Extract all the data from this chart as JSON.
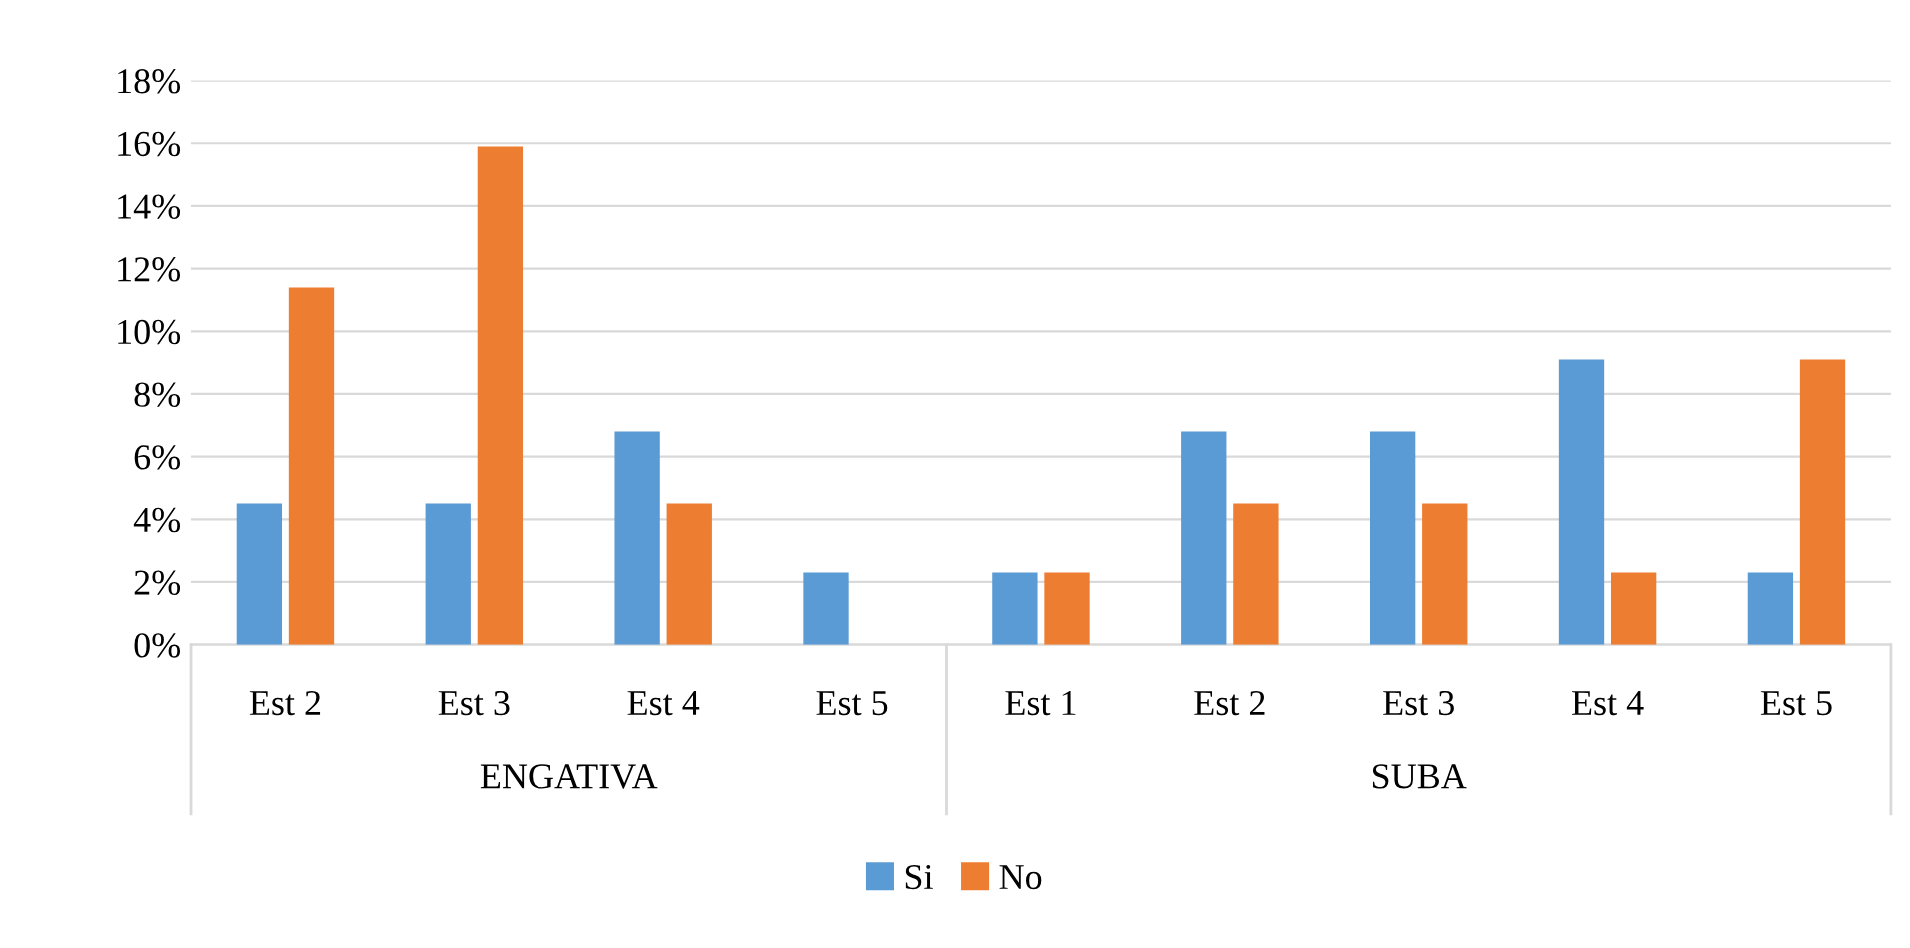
{
  "chart_data": {
    "type": "bar",
    "categories": [
      "Est 2",
      "Est 3",
      "Est 4",
      "Est 5",
      "Est 1",
      "Est 2",
      "Est 3",
      "Est 4",
      "Est 5"
    ],
    "series": [
      {
        "name": "Si",
        "color": "#5b9bd5",
        "values": [
          4.5,
          4.5,
          6.8,
          2.3,
          2.3,
          6.8,
          6.8,
          9.1,
          2.3
        ]
      },
      {
        "name": "No",
        "color": "#ed7d31",
        "values": [
          11.4,
          15.9,
          4.5,
          0,
          2.3,
          4.5,
          4.5,
          2.3,
          9.1
        ]
      }
    ],
    "annotations": [
      "ENGATIVA",
      "SUBA"
    ],
    "ylim": [
      0,
      18
    ],
    "yticks": [
      {
        "value": 0,
        "label": "0%"
      },
      {
        "value": 2,
        "label": "2%"
      },
      {
        "value": 4,
        "label": "4%"
      },
      {
        "value": 6,
        "label": "6%"
      },
      {
        "value": 8,
        "label": "8%"
      },
      {
        "value": 10,
        "label": "10%"
      },
      {
        "value": 12,
        "label": "12%"
      },
      {
        "value": 14,
        "label": "14%"
      },
      {
        "value": 16,
        "label": "16%"
      },
      {
        "value": 18,
        "label": "18%"
      }
    ],
    "grid": "y",
    "legend": "bottom"
  }
}
